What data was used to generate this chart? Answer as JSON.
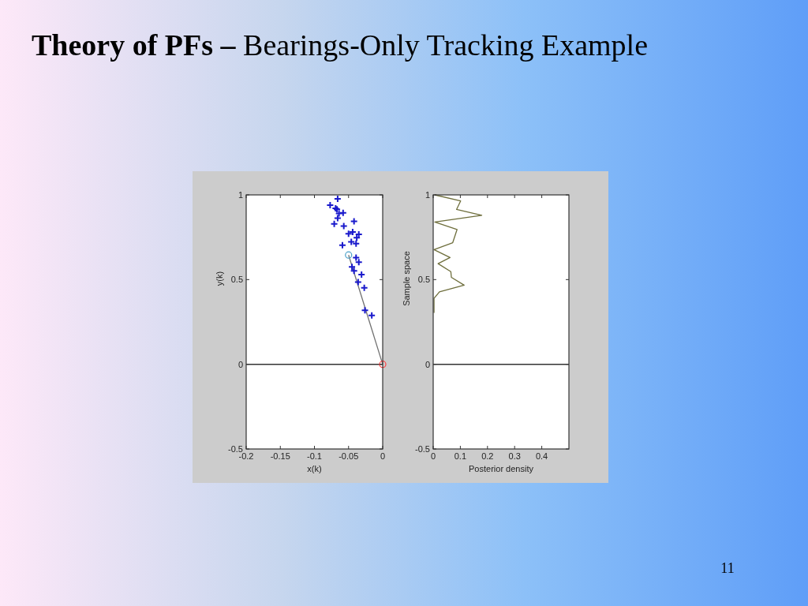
{
  "chart_data": [
    {
      "type": "scatter",
      "title": "Theory of PFs – Bearings-Only Tracking Example",
      "xlabel": "x(k)",
      "ylabel": "y(k)",
      "xlim": [
        -0.2,
        0
      ],
      "xticks": [
        -0.2,
        -0.15,
        -0.1,
        -0.05,
        0
      ],
      "ylim": [
        -0.5,
        1
      ],
      "yticks": [
        -0.5,
        0,
        0.5,
        1
      ],
      "ref_lines": [
        {
          "axis": "y",
          "value": 0,
          "color": "#333333"
        }
      ],
      "series": [
        {
          "type": "line",
          "color": "#707070",
          "marker": "none",
          "x": [
            0,
            -0.05
          ],
          "values": [
            0,
            0.645
          ]
        },
        {
          "color": "#1a1acc",
          "marker": "cross",
          "x": [
            -0.066,
            -0.077,
            -0.069,
            -0.067,
            -0.058,
            -0.064,
            -0.066,
            -0.042,
            -0.071,
            -0.057,
            -0.05,
            -0.044,
            -0.035,
            -0.038,
            -0.046,
            -0.039,
            -0.059,
            -0.039,
            -0.035,
            -0.042,
            -0.031,
            -0.045,
            -0.036,
            -0.027,
            -0.026,
            -0.016
          ],
          "values": [
            0.977,
            0.939,
            0.921,
            0.915,
            0.894,
            0.89,
            0.863,
            0.844,
            0.829,
            0.816,
            0.77,
            0.781,
            0.767,
            0.747,
            0.723,
            0.712,
            0.703,
            0.63,
            0.603,
            0.552,
            0.529,
            0.575,
            0.485,
            0.451,
            0.319,
            0.288
          ]
        },
        {
          "color": "#4aa0c8",
          "marker": "circle",
          "x": [
            -0.05
          ],
          "values": [
            0.645
          ]
        },
        {
          "color": "#ff4040",
          "marker": "circle",
          "x": [
            0
          ],
          "values": [
            0
          ]
        }
      ]
    },
    {
      "type": "line",
      "xlabel": "Posterior density",
      "ylabel": "Sample space",
      "xlim": [
        0,
        0.5
      ],
      "xticks": [
        0,
        0.1,
        0.2,
        0.3,
        0.4
      ],
      "ylim": [
        -0.5,
        1
      ],
      "yticks": [
        -0.5,
        0,
        0.5,
        1
      ],
      "ref_lines": [
        {
          "axis": "y",
          "value": 0,
          "color": "#333333"
        }
      ],
      "annotations": [
        "11"
      ],
      "series": [
        {
          "color": "#6e6e3c",
          "marker": "none",
          "x": [
            0.006,
            0.101,
            0.086,
            0.179,
            0.006,
            0.088,
            0.072,
            0.003,
            0.062,
            0.018,
            0.065,
            0.067,
            0.114,
            0.023,
            0.003,
            0.003
          ],
          "values": [
            1.0,
            0.964,
            0.914,
            0.879,
            0.84,
            0.796,
            0.718,
            0.677,
            0.63,
            0.594,
            0.547,
            0.513,
            0.467,
            0.428,
            0.389,
            0.303
          ]
        }
      ]
    }
  ]
}
